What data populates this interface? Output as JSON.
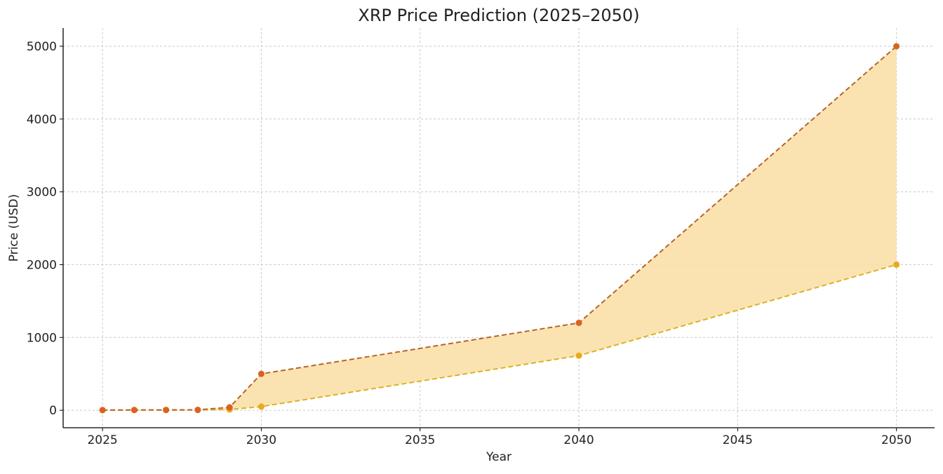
{
  "chart_data": {
    "type": "line",
    "title": "XRP Price Prediction (2025–2050)",
    "xlabel": "Year",
    "ylabel": "Price (USD)",
    "xlim": [
      2023.76,
      2051.2
    ],
    "ylim": [
      -240,
      5250
    ],
    "xticks": [
      2025,
      2030,
      2035,
      2040,
      2045,
      2050
    ],
    "yticks": [
      0,
      1000,
      2000,
      3000,
      4000,
      5000
    ],
    "grid": true,
    "fill_between": true,
    "colors": {
      "upper": "#d9621f",
      "upper_line": "#b5652a",
      "lower": "#e8a91c",
      "lower_line": "#d7b425",
      "fill": "#fbe0a8"
    },
    "series": [
      {
        "key": "upper",
        "x": [
          2025,
          2026,
          2027,
          2028,
          2029,
          2030,
          2040,
          2050
        ],
        "y": [
          3,
          4,
          5,
          6,
          40,
          500,
          1200,
          5000
        ]
      },
      {
        "key": "lower",
        "x": [
          2025,
          2026,
          2027,
          2028,
          2029,
          2030,
          2040,
          2050
        ],
        "y": [
          1,
          2,
          2,
          3,
          10,
          50,
          750,
          2000
        ]
      }
    ]
  }
}
